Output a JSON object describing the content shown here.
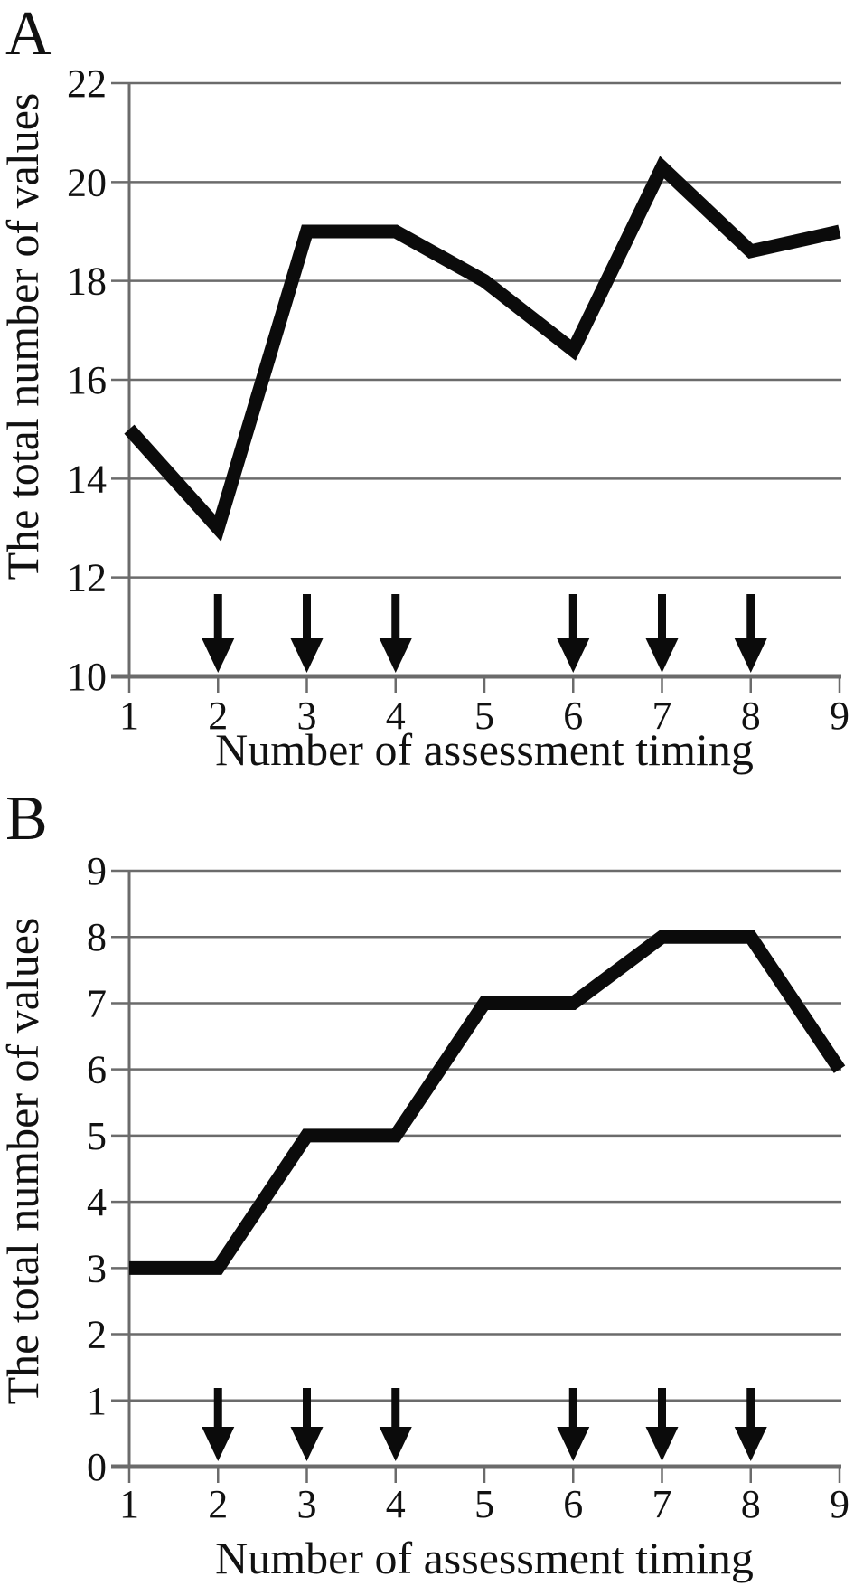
{
  "colors": {
    "line": "#0b0b0b",
    "grid": "#6b6b6b",
    "text": "#111111",
    "background": "#ffffff"
  },
  "chart_data": [
    {
      "type": "line",
      "panel": "A",
      "title": "",
      "xlabel": "Number of assessment timing",
      "ylabel": "The total number of values",
      "x": [
        1,
        2,
        3,
        4,
        5,
        6,
        7,
        8,
        9
      ],
      "xticks": [
        1,
        2,
        3,
        4,
        5,
        6,
        7,
        8,
        9
      ],
      "values": [
        15,
        13,
        19,
        19,
        18,
        16.6,
        20.3,
        18.6,
        19
      ],
      "ylim": [
        10,
        22
      ],
      "yticks": [
        10,
        12,
        14,
        16,
        18,
        20,
        22
      ],
      "grid": "horizontal-only",
      "legend": "none",
      "series_color": "#0b0b0b",
      "arrows_at_x": [
        2,
        3,
        4,
        6,
        7,
        8
      ],
      "annotation": "solid downward arrows just above the x-axis at x = 2, 3, 4, 6, 7, 8"
    },
    {
      "type": "line",
      "panel": "B",
      "title": "",
      "xlabel": "Number of assessment timing",
      "ylabel": "The total number of values",
      "x": [
        1,
        2,
        3,
        4,
        5,
        6,
        7,
        8,
        9
      ],
      "xticks": [
        1,
        2,
        3,
        4,
        5,
        6,
        7,
        8,
        9
      ],
      "values": [
        3,
        3,
        5,
        5,
        7,
        7,
        8,
        8,
        6
      ],
      "ylim": [
        0,
        9
      ],
      "yticks": [
        0,
        1,
        2,
        3,
        4,
        5,
        6,
        7,
        8,
        9
      ],
      "grid": "horizontal-only",
      "legend": "none",
      "series_color": "#0b0b0b",
      "arrows_at_x": [
        2,
        3,
        4,
        6,
        7,
        8
      ],
      "annotation": "solid downward arrows just above the x-axis at x = 2, 3, 4, 6, 7, 8"
    }
  ]
}
